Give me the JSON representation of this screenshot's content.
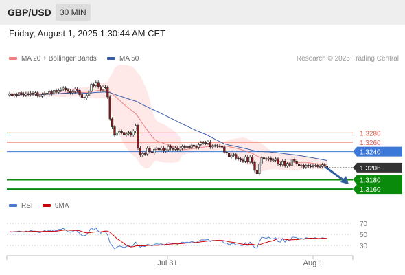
{
  "header": {
    "symbol": "GBP/USD",
    "timeframe": "30 MIN"
  },
  "datetime": "Friday, August 1, 2025 1:30:44 AM CET",
  "legend": {
    "ma20_label": "MA 20 + Bollinger Bands",
    "ma50_label": "MA 50",
    "rsi_label": "RSI",
    "ma9_label": "9MA",
    "credit": "Research © 2025 Trading Central"
  },
  "colors": {
    "ma20": "#f08080",
    "ma50": "#3a5ea8",
    "band_fill": "#ffe4e4",
    "pivot": "#3c78d8",
    "resistance": "#e05a4a",
    "support": "#0a8a0a",
    "candle": "#8b1a1a",
    "rsi": "#4a7bd0",
    "rsi_ma": "#cc0000",
    "arrow": "#2e5e9e"
  },
  "chart_data": [
    {
      "type": "candlestick",
      "ylim": [
        1.315,
        1.342
      ],
      "x_ticks": [
        "Jul 31",
        "Aug 1"
      ],
      "current_price": "1.3206",
      "levels": [
        {
          "label": "1.3280",
          "value": 1.328,
          "kind": "resistance"
        },
        {
          "label": "1.3260",
          "value": 1.326,
          "kind": "resistance"
        },
        {
          "label": "1.3240",
          "value": 1.324,
          "kind": "pivot"
        },
        {
          "label": "1.3180",
          "value": 1.318,
          "kind": "support"
        },
        {
          "label": "1.3160",
          "value": 1.316,
          "kind": "support"
        }
      ],
      "close": [
        1.3364,
        1.3359,
        1.3362,
        1.336,
        1.3366,
        1.3363,
        1.3361,
        1.3364,
        1.3362,
        1.3365,
        1.3363,
        1.3366,
        1.336,
        1.3358,
        1.3362,
        1.3365,
        1.3364,
        1.3368,
        1.3364,
        1.3371,
        1.3367,
        1.3371,
        1.3373,
        1.3376,
        1.3372,
        1.3369,
        1.3366,
        1.3368,
        1.3374,
        1.3371,
        1.3362,
        1.3356,
        1.3355,
        1.336,
        1.337,
        1.3384,
        1.3381,
        1.3388,
        1.3379,
        1.3372,
        1.3378,
        1.3377,
        1.3357,
        1.331,
        1.3293,
        1.3275,
        1.328,
        1.3283,
        1.3281,
        1.3276,
        1.3278,
        1.3281,
        1.3276,
        1.3284,
        1.3296,
        1.3248,
        1.3233,
        1.3236,
        1.3235,
        1.3247,
        1.324,
        1.3237,
        1.3245,
        1.3248,
        1.3244,
        1.3248,
        1.3242,
        1.3244,
        1.3251,
        1.3247,
        1.3245,
        1.3248,
        1.3244,
        1.3247,
        1.3251,
        1.3249,
        1.3251,
        1.3249,
        1.3254,
        1.3251,
        1.3249,
        1.3255,
        1.3259,
        1.3259,
        1.3258,
        1.3261,
        1.325,
        1.3253,
        1.3253,
        1.3252,
        1.3251,
        1.325,
        1.3239,
        1.3237,
        1.3229,
        1.3232,
        1.3234,
        1.3226,
        1.3225,
        1.3222,
        1.322,
        1.3229,
        1.3219,
        1.3228,
        1.3217,
        1.32,
        1.3193,
        1.3214,
        1.3227,
        1.3225,
        1.3224,
        1.3226,
        1.3222,
        1.3222,
        1.3225,
        1.3214,
        1.3212,
        1.322,
        1.321,
        1.3215,
        1.3211,
        1.3224,
        1.322,
        1.3214,
        1.321,
        1.3211,
        1.3207,
        1.3211,
        1.3209,
        1.3208,
        1.3211,
        1.3211,
        1.3208,
        1.3208,
        1.3212,
        1.3209,
        1.3206
      ],
      "rsi": [
        55,
        54,
        55,
        55,
        56,
        55,
        54,
        56,
        55,
        57,
        56,
        56,
        54,
        53,
        55,
        57,
        55,
        58,
        55,
        59,
        56,
        59,
        59,
        61,
        58,
        55,
        54,
        55,
        58,
        56,
        52,
        48,
        47,
        50,
        55,
        62,
        58,
        62,
        56,
        52,
        55,
        55,
        49,
        35,
        29,
        24,
        27,
        29,
        28,
        26,
        28,
        30,
        27,
        31,
        36,
        30,
        27,
        29,
        28,
        32,
        31,
        29,
        32,
        33,
        32,
        33,
        31,
        32,
        35,
        34,
        33,
        34,
        32,
        34,
        36,
        35,
        36,
        35,
        37,
        36,
        35,
        38,
        40,
        40,
        40,
        41,
        37,
        39,
        39,
        39,
        38,
        38,
        34,
        34,
        31,
        33,
        34,
        31,
        31,
        30,
        30,
        35,
        30,
        36,
        31,
        26,
        25,
        37,
        45,
        44,
        43,
        45,
        42,
        42,
        44,
        37,
        36,
        43,
        36,
        41,
        38,
        45,
        45,
        44,
        42,
        43,
        41,
        44,
        43,
        42,
        43,
        44,
        42,
        42,
        44,
        43,
        42
      ]
    }
  ]
}
